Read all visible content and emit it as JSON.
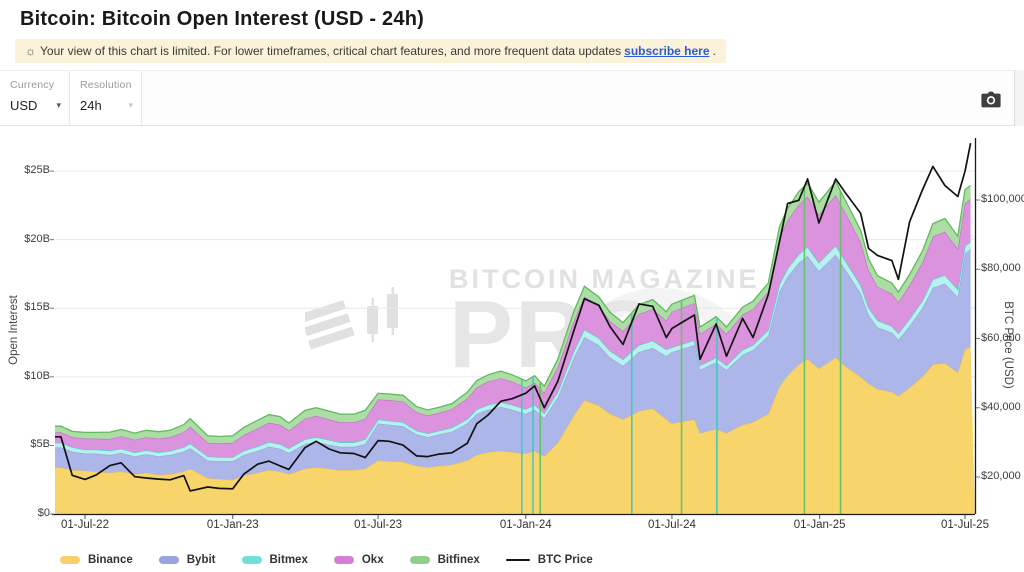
{
  "page": {
    "title": "Bitcoin: Bitcoin Open Interest (USD - 24h)"
  },
  "banner": {
    "icon": "☼",
    "text": "Your view of this chart is limited. For lower timeframes, critical chart features, and more frequent data updates",
    "link_text": "subscribe here",
    "suffix": "."
  },
  "controls": {
    "currency": {
      "label": "Currency",
      "value": "USD",
      "chevron_icon": "▾"
    },
    "resolution": {
      "label": "Resolution",
      "value": "24h",
      "chevron_icon": "▾"
    },
    "screenshot_icon": "camera-icon"
  },
  "watermark": {
    "line1": "BITCOIN MAGAZINE",
    "line2": "PRO",
    "registered": "®"
  },
  "legend": {
    "items": [
      {
        "label": "Binance",
        "color": "#F7CF6B",
        "type": "area"
      },
      {
        "label": "Bybit",
        "color": "#97A4E2",
        "type": "area"
      },
      {
        "label": "Bitmex",
        "color": "#6FDFD9",
        "type": "area"
      },
      {
        "label": "Okx",
        "color": "#D27FD6",
        "type": "area"
      },
      {
        "label": "Bitfinex",
        "color": "#90CE8C",
        "type": "area"
      },
      {
        "label": "BTC Price",
        "color": "#141414",
        "type": "line"
      }
    ]
  },
  "chart_data": {
    "type": "area",
    "stacked": true,
    "grid": "horizontal-left-axis-only",
    "legend_position": "bottom-left",
    "left_axis": {
      "label": "Open Interest",
      "unit": "USD billions",
      "tick_values": [
        0,
        5,
        10,
        15,
        20,
        25
      ],
      "tick_labels": [
        "$0",
        "$5B",
        "$10B",
        "$15B",
        "$20B",
        "$25B"
      ],
      "range_billions": [
        0,
        27.3
      ]
    },
    "right_axis": {
      "label": "BTC Price (USD)",
      "unit": "USD thousands",
      "tick_values": [
        20,
        40,
        60,
        80,
        100
      ],
      "tick_labels": [
        "$20,000",
        "$40,000",
        "$60,000",
        "$80,000",
        "$100,000"
      ],
      "range_usd": [
        9300,
        117400
      ]
    },
    "x_axis": {
      "ticks": [
        {
          "label": "01-Jul-22",
          "date": "2022-07-01"
        },
        {
          "label": "01-Jan-23",
          "date": "2023-01-01"
        },
        {
          "label": "01-Jul-23",
          "date": "2023-07-01"
        },
        {
          "label": "01-Jan-24",
          "date": "2024-01-01"
        },
        {
          "label": "01-Jul-24",
          "date": "2024-07-01"
        },
        {
          "label": "01-Jan-25",
          "date": "2025-01-01"
        },
        {
          "label": "01-Jul-25",
          "date": "2025-07-01"
        }
      ]
    },
    "dates": [
      "2022-06-01",
      "2022-06-15",
      "2022-07-01",
      "2022-07-15",
      "2022-08-01",
      "2022-08-15",
      "2022-09-01",
      "2022-09-15",
      "2022-10-01",
      "2022-10-15",
      "2022-11-01",
      "2022-11-09",
      "2022-12-01",
      "2022-12-15",
      "2023-01-01",
      "2023-01-15",
      "2023-02-01",
      "2023-02-15",
      "2023-03-01",
      "2023-03-12",
      "2023-04-01",
      "2023-04-15",
      "2023-05-01",
      "2023-05-15",
      "2023-06-01",
      "2023-06-15",
      "2023-07-01",
      "2023-07-15",
      "2023-08-01",
      "2023-08-18",
      "2023-09-01",
      "2023-09-15",
      "2023-10-01",
      "2023-10-20",
      "2023-11-01",
      "2023-11-15",
      "2023-12-01",
      "2023-12-15",
      "2024-01-01",
      "2024-01-12",
      "2024-01-24",
      "2024-02-10",
      "2024-03-01",
      "2024-03-14",
      "2024-04-01",
      "2024-04-15",
      "2024-05-01",
      "2024-05-21",
      "2024-06-07",
      "2024-06-24",
      "2024-07-01",
      "2024-07-29",
      "2024-08-05",
      "2024-08-25",
      "2024-09-07",
      "2024-09-27",
      "2024-10-10",
      "2024-10-29",
      "2024-11-12",
      "2024-11-22",
      "2024-12-06",
      "2024-12-17",
      "2024-12-31",
      "2025-01-21",
      "2025-02-01",
      "2025-02-21",
      "2025-03-03",
      "2025-03-14",
      "2025-04-01",
      "2025-04-09",
      "2025-04-23",
      "2025-05-09",
      "2025-05-22",
      "2025-06-06",
      "2025-06-22",
      "2025-07-01",
      "2025-07-08"
    ],
    "series": [
      {
        "name": "Binance",
        "fill": "#F8D56B",
        "line": "#EEBE4D",
        "values_billions": [
          3.4,
          3.2,
          3.15,
          3.1,
          3.0,
          3.1,
          2.9,
          3.0,
          2.85,
          2.9,
          3.1,
          3.3,
          2.6,
          2.55,
          2.5,
          2.8,
          3.0,
          3.2,
          3.1,
          2.9,
          3.3,
          3.4,
          3.3,
          3.2,
          3.2,
          3.3,
          3.9,
          3.85,
          3.8,
          3.5,
          3.4,
          3.5,
          3.6,
          3.9,
          4.3,
          4.5,
          4.6,
          4.5,
          4.4,
          4.6,
          4.2,
          5.2,
          7.2,
          8.3,
          7.9,
          7.3,
          6.9,
          7.5,
          7.7,
          6.9,
          6.6,
          6.9,
          5.9,
          6.2,
          5.9,
          6.5,
          6.7,
          7.3,
          9.3,
          10.1,
          10.9,
          11.3,
          10.6,
          11.4,
          10.8,
          10.0,
          9.5,
          9.1,
          8.9,
          8.6,
          9.2,
          10.0,
          10.9,
          11.0,
          10.3,
          12.0,
          12.2
        ]
      },
      {
        "name": "Bybit",
        "fill": "#ACB6E8",
        "line": "#8E9CE0",
        "values_billions": [
          1.45,
          1.35,
          1.25,
          1.3,
          1.3,
          1.35,
          1.3,
          1.35,
          1.35,
          1.4,
          1.45,
          1.5,
          1.3,
          1.3,
          1.35,
          1.5,
          1.6,
          1.7,
          1.65,
          1.55,
          1.8,
          1.85,
          1.75,
          1.7,
          1.7,
          1.8,
          2.7,
          2.65,
          2.6,
          2.3,
          2.2,
          2.3,
          2.4,
          2.7,
          3.0,
          3.1,
          3.2,
          3.1,
          2.9,
          3.0,
          2.8,
          3.3,
          4.2,
          4.6,
          4.4,
          4.1,
          3.9,
          4.3,
          4.4,
          4.6,
          5.2,
          5.4,
          4.6,
          4.85,
          4.6,
          5.1,
          5.25,
          5.7,
          6.9,
          7.2,
          7.4,
          7.5,
          7.1,
          7.5,
          7.1,
          6.1,
          5.0,
          4.5,
          4.3,
          4.1,
          4.5,
          5.0,
          5.6,
          5.8,
          5.5,
          7.0,
          7.1
        ]
      },
      {
        "name": "Bitmex",
        "fill": "#B8F0ED",
        "line": "#46D5CF",
        "values_billions": [
          0.35,
          0.33,
          0.3,
          0.3,
          0.32,
          0.32,
          0.3,
          0.3,
          0.3,
          0.3,
          0.32,
          0.35,
          0.3,
          0.3,
          0.3,
          0.32,
          0.33,
          0.35,
          0.35,
          0.33,
          0.35,
          0.35,
          0.35,
          0.33,
          0.33,
          0.35,
          0.3,
          0.3,
          0.3,
          0.28,
          0.28,
          0.28,
          0.3,
          0.32,
          0.33,
          0.35,
          0.35,
          0.35,
          0.35,
          0.36,
          0.34,
          0.42,
          0.5,
          0.55,
          0.52,
          0.5,
          0.48,
          0.52,
          0.54,
          0.5,
          0.35,
          0.37,
          0.33,
          0.35,
          0.33,
          0.37,
          0.38,
          0.42,
          0.55,
          0.6,
          0.65,
          0.68,
          0.63,
          0.68,
          0.65,
          0.6,
          0.56,
          0.52,
          0.5,
          0.48,
          0.52,
          0.56,
          0.62,
          0.62,
          0.58,
          0.55,
          0.55
        ]
      },
      {
        "name": "Okx",
        "fill": "#DC93DD",
        "line": "#C45EC6",
        "values_billions": [
          0.75,
          0.72,
          0.8,
          0.8,
          0.85,
          0.9,
          0.9,
          0.95,
          1.0,
          1.0,
          1.1,
          1.2,
          1.0,
          1.0,
          1.05,
          1.15,
          1.3,
          1.4,
          1.4,
          1.3,
          1.5,
          1.55,
          1.5,
          1.45,
          1.45,
          1.5,
          1.45,
          1.5,
          1.5,
          1.35,
          1.3,
          1.3,
          1.35,
          1.5,
          1.6,
          1.7,
          1.75,
          1.7,
          1.55,
          1.6,
          1.5,
          1.8,
          2.2,
          2.4,
          2.3,
          2.15,
          2.05,
          2.25,
          2.3,
          2.1,
          2.6,
          2.7,
          2.3,
          2.45,
          2.3,
          2.55,
          2.6,
          2.8,
          3.4,
          3.5,
          3.6,
          3.65,
          3.5,
          3.65,
          3.5,
          3.15,
          2.7,
          2.45,
          2.35,
          2.25,
          2.45,
          2.75,
          3.1,
          3.15,
          2.95,
          3.1,
          3.1
        ]
      },
      {
        "name": "Bitfinex",
        "fill": "#ABDDA5",
        "line": "#61B95F",
        "values_billions": [
          0.45,
          0.42,
          0.45,
          0.45,
          0.5,
          0.5,
          0.5,
          0.5,
          0.5,
          0.5,
          0.55,
          0.6,
          0.5,
          0.5,
          0.5,
          0.55,
          0.6,
          0.6,
          0.6,
          0.55,
          0.6,
          0.6,
          0.6,
          0.6,
          0.6,
          0.6,
          0.45,
          0.45,
          0.45,
          0.4,
          0.4,
          0.4,
          0.4,
          0.45,
          0.5,
          0.5,
          0.52,
          0.5,
          0.5,
          0.52,
          0.48,
          0.58,
          0.7,
          0.75,
          0.7,
          0.65,
          0.62,
          0.68,
          0.7,
          0.64,
          0.55,
          0.57,
          0.5,
          0.53,
          0.5,
          0.56,
          0.58,
          0.62,
          0.8,
          0.88,
          0.95,
          1.0,
          0.9,
          1.0,
          0.92,
          0.85,
          0.82,
          0.8,
          0.78,
          0.75,
          0.8,
          0.86,
          0.95,
          0.98,
          0.92,
          1.0,
          1.0
        ]
      }
    ],
    "btc_price": {
      "name": "BTC Price",
      "color": "#121212",
      "values_usd_thousands": [
        31.6,
        20.5,
        19.3,
        20.6,
        23.3,
        24.1,
        20.1,
        19.7,
        19.4,
        19.2,
        20.4,
        16.0,
        17.1,
        16.7,
        16.6,
        20.9,
        23.7,
        24.6,
        23.2,
        22.2,
        28.5,
        30.3,
        28.1,
        27.0,
        26.8,
        25.6,
        30.5,
        30.3,
        29.2,
        26.1,
        25.9,
        26.6,
        27.0,
        29.7,
        35.4,
        37.9,
        41.9,
        42.6,
        44.2,
        46.3,
        40.0,
        47.7,
        62.4,
        71.5,
        69.6,
        63.4,
        58.3,
        70.0,
        69.3,
        60.3,
        62.9,
        66.8,
        54.0,
        64.2,
        54.9,
        65.8,
        60.3,
        72.7,
        88.0,
        99.0,
        99.9,
        106.1,
        93.4,
        106.1,
        102.4,
        96.2,
        86.0,
        84.0,
        82.5,
        77.1,
        93.7,
        102.9,
        109.7,
        104.2,
        101.0,
        108.3,
        116.4
      ]
    },
    "data_gaps": [
      {
        "date": "2023-12-27",
        "color": "#45C8BE"
      },
      {
        "date": "2024-01-10",
        "color": "#45C8BE"
      },
      {
        "date": "2024-01-19",
        "color": "#6ABF69"
      },
      {
        "date": "2024-05-12",
        "color": "#45C8BE"
      },
      {
        "date": "2024-07-13",
        "color": "#6ABF69"
      },
      {
        "date": "2024-08-26",
        "color": "#45C8BE"
      },
      {
        "date": "2024-12-13",
        "color": "#6ABF69"
      },
      {
        "date": "2025-01-27",
        "color": "#6ABF69"
      }
    ]
  }
}
